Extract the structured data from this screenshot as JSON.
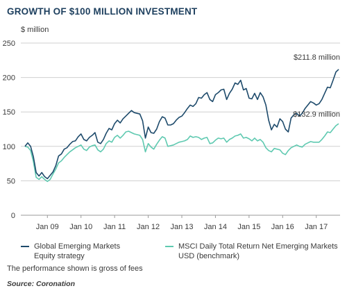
{
  "title": "GROWTH OF $100 MILLION INVESTMENT",
  "note": "The performance shown is gross of fees",
  "source": "Source: Coronation",
  "colors": {
    "title": "#1d3f5e",
    "series1": "#1d4a6b",
    "series2": "#5ec9b0",
    "grid": "#cfcfcf"
  },
  "chart_data": {
    "type": "line",
    "ylabel": "$ million",
    "xlabel": "",
    "ylim": [
      0,
      250
    ],
    "yticks": [
      0,
      50,
      100,
      150,
      200,
      250
    ],
    "xticks": [
      "Jan 09",
      "Jan 10",
      "Jan 11",
      "Jan 12",
      "Jan 13",
      "Jan 14",
      "Jan 15",
      "Jan 16",
      "Jan 17"
    ],
    "x_start": "2008-05",
    "grid": "horizontal",
    "legend_position": "bottom",
    "series": [
      {
        "name": "Global Emerging Markets Equity strategy",
        "end_label": "$211.8 million",
        "values": [
          100,
          105,
          100,
          85,
          62,
          57,
          62,
          56,
          53,
          58,
          63,
          72,
          86,
          89,
          96,
          98,
          103,
          107,
          108,
          114,
          118,
          110,
          108,
          113,
          116,
          120,
          106,
          104,
          110,
          119,
          126,
          124,
          133,
          138,
          134,
          140,
          144,
          148,
          152,
          149,
          148,
          147,
          137,
          112,
          128,
          120,
          119,
          125,
          136,
          143,
          141,
          131,
          131,
          133,
          138,
          142,
          144,
          149,
          155,
          160,
          158,
          162,
          171,
          170,
          175,
          178,
          168,
          165,
          175,
          178,
          182,
          183,
          168,
          177,
          183,
          192,
          190,
          196,
          182,
          184,
          170,
          169,
          177,
          168,
          178,
          172,
          160,
          138,
          124,
          132,
          128,
          140,
          136,
          125,
          121,
          141,
          146,
          148,
          144,
          148,
          155,
          160,
          165,
          163,
          160,
          162,
          168,
          177,
          186,
          185,
          196,
          208,
          211.8
        ]
      },
      {
        "name": "MSCI Daily Total Return Net Emerging Markets USD (benchmark)",
        "end_label": "$132.9 million",
        "values": [
          100,
          99,
          94,
          78,
          55,
          52,
          56,
          52,
          49,
          52,
          60,
          67,
          76,
          79,
          84,
          88,
          92,
          95,
          98,
          100,
          102,
          96,
          94,
          99,
          101,
          102,
          95,
          92,
          96,
          104,
          108,
          106,
          113,
          116,
          112,
          116,
          121,
          122,
          120,
          118,
          117,
          116,
          110,
          92,
          104,
          99,
          96,
          103,
          109,
          114,
          112,
          100,
          101,
          102,
          104,
          106,
          107,
          108,
          110,
          115,
          113,
          114,
          113,
          110,
          112,
          113,
          104,
          105,
          109,
          112,
          111,
          112,
          106,
          110,
          112,
          115,
          116,
          118,
          112,
          113,
          111,
          108,
          112,
          108,
          110,
          106,
          98,
          94,
          92,
          97,
          96,
          95,
          90,
          88,
          94,
          98,
          100,
          102,
          100,
          99,
          103,
          105,
          107,
          106,
          106,
          106,
          110,
          115,
          121,
          120,
          125,
          130,
          132.9
        ]
      }
    ]
  }
}
